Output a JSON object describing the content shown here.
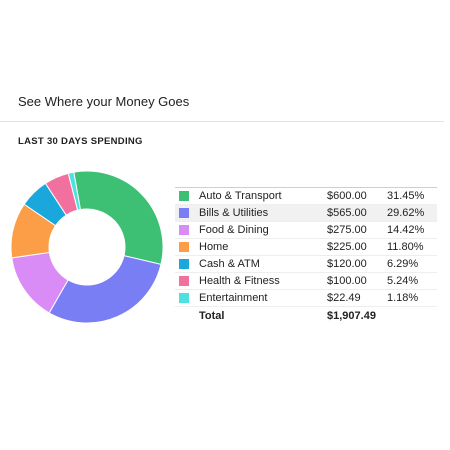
{
  "page": {
    "title": "See Where your Money Goes",
    "section_title": "LAST 30 DAYS SPENDING"
  },
  "chart_data": {
    "type": "pie",
    "title": "",
    "categories": [
      "Auto & Transport",
      "Bills & Utilities",
      "Food & Dining",
      "Home",
      "Cash & ATM",
      "Health & Fitness",
      "Entertainment"
    ],
    "values": [
      600.0,
      565.0,
      275.0,
      225.0,
      120.0,
      100.0,
      22.49
    ],
    "amount_labels": [
      "$600.00",
      "$565.00",
      "$275.00",
      "$225.00",
      "$120.00",
      "$100.00",
      "$22.49"
    ],
    "percent_labels": [
      "31.45%",
      "29.62%",
      "14.42%",
      "11.80%",
      "6.29%",
      "5.24%",
      "1.18%"
    ],
    "colors": [
      "#3dbf74",
      "#7a7ef5",
      "#d98cf5",
      "#fb9e47",
      "#1aa8dc",
      "#f2709e",
      "#4fe1e1"
    ],
    "total_label": "Total",
    "total_amount": "$1,907.49"
  }
}
